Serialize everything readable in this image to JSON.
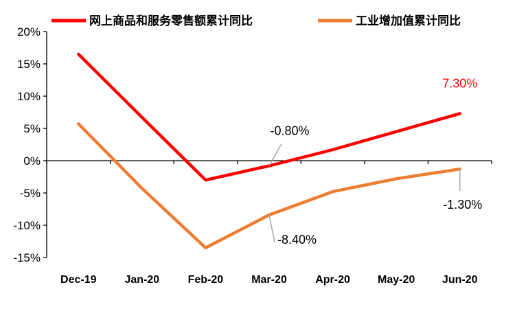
{
  "chart_data": {
    "type": "line",
    "categories": [
      "Dec-19",
      "Jan-20",
      "Feb-20",
      "Mar-20",
      "Apr-20",
      "May-20",
      "Jun-20"
    ],
    "ylim": [
      -0.15,
      0.2
    ],
    "yticks": [
      0.2,
      0.15,
      0.1,
      0.05,
      0.0,
      -0.05,
      -0.1,
      -0.15
    ],
    "ytick_labels": [
      "20%",
      "15%",
      "10%",
      "5%",
      "0%",
      "-5%",
      "-10%",
      "-15%"
    ],
    "grid": false,
    "legend_position": "top",
    "series": [
      {
        "name": "网上商品和服务零售额累计同比",
        "color": "#ff0000",
        "values": [
          0.165,
          0.067,
          -0.03,
          -0.008,
          0.017,
          0.045,
          0.073
        ]
      },
      {
        "name": "工业增加值累计同比",
        "color": "#ed7d31",
        "values": [
          0.057,
          -0.043,
          -0.135,
          -0.084,
          -0.048,
          -0.028,
          -0.013
        ]
      }
    ],
    "annotations": [
      {
        "text": "7.30%",
        "series": 0,
        "index": 6,
        "color": "#ff0000"
      },
      {
        "text": "-0.80%",
        "series": 0,
        "index": 3,
        "color": "#000000"
      },
      {
        "text": "-8.40%",
        "series": 1,
        "index": 3,
        "color": "#000000"
      },
      {
        "text": "-1.30%",
        "series": 1,
        "index": 6,
        "color": "#000000"
      }
    ]
  }
}
